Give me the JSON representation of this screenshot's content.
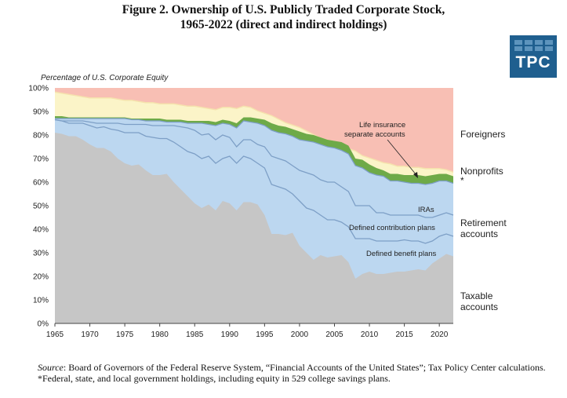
{
  "header": {
    "title_line1": "Figure 2. Ownership of U.S. Publicly Traded Corporate Stock,",
    "title_line2": "1965-2022 (direct and indirect holdings)",
    "logo_text": "TPC"
  },
  "footer": {
    "source_label": "Source",
    "source_text": ": Board of Governors of the Federal Reserve System, “Financial Accounts of the United States”; Tax Policy Center calculations.",
    "footnote": "*Federal, state, and local government holdings, including equity in 529 college savings plans."
  },
  "colors": {
    "taxable": "#c6c6c6",
    "retirement": "#bcd7f0",
    "retirement_lines": "#7d9fc6",
    "life_insurance": "#6eaa48",
    "nonprofits": "#fbf4c8",
    "government": "#f5e2ad",
    "foreigners": "#f8bfb4"
  },
  "chart_data": {
    "type": "area",
    "ylabel": "Percentage of U.S. Corporate Equity",
    "ylim": [
      0,
      100
    ],
    "xlim": [
      1965,
      2022
    ],
    "yticks": [
      "0%",
      "10%",
      "20%",
      "30%",
      "40%",
      "50%",
      "60%",
      "70%",
      "80%",
      "90%",
      "100%"
    ],
    "xticks": [
      "1965",
      "1970",
      "1975",
      "1980",
      "1985",
      "1990",
      "1995",
      "2000",
      "2005",
      "2010",
      "2015",
      "2020"
    ],
    "x": [
      1965,
      1966,
      1967,
      1968,
      1969,
      1970,
      1971,
      1972,
      1973,
      1974,
      1975,
      1976,
      1977,
      1978,
      1979,
      1980,
      1981,
      1982,
      1983,
      1984,
      1985,
      1986,
      1987,
      1988,
      1989,
      1990,
      1991,
      1992,
      1993,
      1994,
      1995,
      1996,
      1997,
      1998,
      1999,
      2000,
      2001,
      2002,
      2003,
      2004,
      2005,
      2006,
      2007,
      2008,
      2009,
      2010,
      2011,
      2012,
      2013,
      2014,
      2015,
      2016,
      2017,
      2018,
      2019,
      2020,
      2021,
      2022
    ],
    "stacked_tops": {
      "taxable": [
        81,
        80.5,
        79.5,
        79.5,
        78,
        76,
        74.5,
        74.5,
        73,
        70,
        68,
        67,
        67.5,
        65,
        63,
        63,
        63.5,
        60,
        57,
        54,
        51,
        49,
        50.5,
        48,
        52,
        51,
        48,
        51.5,
        51.5,
        50.5,
        46,
        38,
        38,
        37.5,
        38.5,
        33,
        30,
        27,
        29,
        28,
        28.5,
        29,
        26,
        19,
        21,
        22,
        21,
        21,
        21.5,
        22,
        22,
        22.5,
        23,
        22.5,
        25.5,
        27.5,
        29.5,
        28.5
      ],
      "defined_benefit": [
        86.5,
        86,
        85,
        85,
        85,
        84,
        83,
        83.5,
        82.5,
        82,
        81,
        81,
        81,
        79.5,
        79,
        78.5,
        78.5,
        77,
        75,
        73,
        72,
        70,
        71,
        68,
        70,
        71,
        68,
        71,
        70,
        68,
        66,
        59,
        58,
        57,
        55,
        52,
        49,
        48,
        46,
        44,
        44,
        43,
        41,
        36,
        36,
        36,
        35,
        35,
        35,
        35,
        35.5,
        35,
        35,
        34,
        35,
        37,
        38,
        37
      ],
      "defined_contribution": [
        86.5,
        86,
        86,
        86,
        86,
        85.5,
        85,
        85,
        85,
        85,
        84.5,
        84.5,
        84.5,
        84.5,
        84,
        84,
        84,
        84,
        83.5,
        83,
        82,
        80,
        80.5,
        78,
        80,
        79,
        75,
        78,
        78,
        76,
        75,
        71,
        70,
        69,
        67,
        65,
        64,
        63,
        61,
        60,
        60,
        58,
        56,
        50,
        50,
        50,
        47,
        47,
        46,
        46,
        46,
        46,
        46,
        45,
        45,
        46,
        47,
        46
      ],
      "iras": [
        87,
        87,
        87,
        87,
        87,
        87,
        87,
        87,
        87,
        87,
        87,
        86.5,
        86.5,
        86,
        86,
        86,
        85.5,
        85.5,
        85.5,
        85,
        85,
        85,
        84.5,
        84,
        85,
        84.5,
        83,
        86,
        85.5,
        85,
        84,
        82,
        81,
        80.5,
        79.5,
        78,
        77.5,
        77,
        76,
        75,
        74.5,
        73.5,
        72,
        67,
        66,
        64,
        63,
        62.5,
        60.5,
        60.5,
        60,
        59.5,
        59.5,
        59,
        59.5,
        60.5,
        60.5,
        59.5
      ],
      "life_insurance": [
        88,
        88,
        87.5,
        87.5,
        87.5,
        87.5,
        87.5,
        87.5,
        87.5,
        87.5,
        87.5,
        87,
        87,
        87,
        87,
        87,
        86.5,
        86.5,
        86.5,
        86,
        86,
        86,
        86,
        85.5,
        86.5,
        86,
        85,
        87.5,
        87.5,
        87,
        86.5,
        85,
        84,
        83.5,
        82.5,
        81.5,
        80.5,
        80,
        79,
        78,
        77.5,
        77,
        75.5,
        70,
        69.5,
        67.5,
        66,
        65,
        63.5,
        63.5,
        63,
        63,
        63,
        62.5,
        63,
        63.5,
        63.5,
        62.5
      ],
      "nonprofits": [
        98,
        97.5,
        97,
        96.5,
        96,
        95.5,
        95.5,
        95.5,
        95.5,
        95,
        94.5,
        94.5,
        94,
        93.5,
        93.5,
        93,
        93,
        93,
        92.5,
        92,
        92,
        91.5,
        91,
        90.5,
        91.5,
        91.5,
        91,
        92,
        91.5,
        90,
        89,
        88,
        86.5,
        85,
        84,
        83,
        81.5,
        80,
        78.5,
        77.5,
        77,
        76,
        74,
        73,
        71,
        70,
        69,
        68,
        67.5,
        66.5,
        66.5,
        66,
        66,
        65.5,
        65.5,
        65.5,
        65,
        64
      ],
      "government": [
        98.5,
        98,
        97.5,
        97,
        96.5,
        96,
        96,
        96,
        96,
        95.5,
        95,
        95,
        94.5,
        94,
        94,
        93.5,
        93.5,
        93.5,
        93,
        92.5,
        92.5,
        92,
        91.5,
        91,
        92,
        92,
        91.5,
        92.5,
        92,
        90.5,
        89.5,
        88.5,
        87,
        85.5,
        84.5,
        83.5,
        82,
        80.5,
        79,
        78,
        77.5,
        76.5,
        74.5,
        73.5,
        71.5,
        70.5,
        69.5,
        68.5,
        68,
        67,
        67,
        66.5,
        66.5,
        66,
        66,
        66,
        65.5,
        64.5
      ],
      "foreigners": [
        100,
        100,
        100,
        100,
        100,
        100,
        100,
        100,
        100,
        100,
        100,
        100,
        100,
        100,
        100,
        100,
        100,
        100,
        100,
        100,
        100,
        100,
        100,
        100,
        100,
        100,
        100,
        100,
        100,
        100,
        100,
        100,
        100,
        100,
        100,
        100,
        100,
        100,
        100,
        100,
        100,
        100,
        100,
        100,
        100,
        100,
        100,
        100,
        100,
        100,
        100,
        100,
        100,
        100,
        100,
        100,
        100,
        100
      ]
    },
    "series_labels": {
      "taxable": "Taxable accounts",
      "defined_benefit": "Defined benefit plans",
      "defined_contribution": "Defined contribution plans",
      "iras": "IRAs",
      "retirement": "Retirement accounts",
      "life_insurance": "Life insurance separate accounts",
      "nonprofits": "Nonprofits",
      "government": "*",
      "foreigners": "Foreigners"
    },
    "legend_placement": "right"
  }
}
